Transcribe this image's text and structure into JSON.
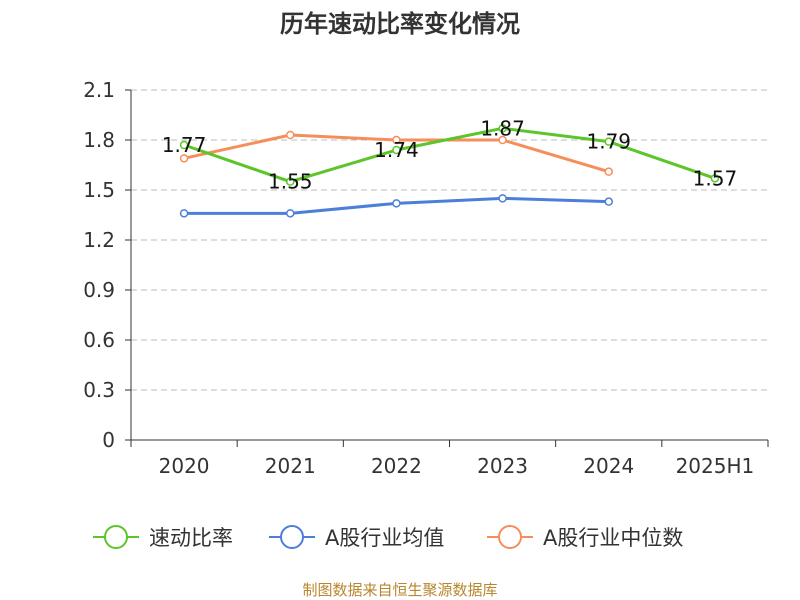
{
  "chart_data": {
    "type": "line",
    "title": "历年速动比率变化情况",
    "categories": [
      "2020",
      "2021",
      "2022",
      "2023",
      "2024",
      "2025H1"
    ],
    "ylim": [
      0,
      2.1
    ],
    "yticks": [
      "0",
      "0.3",
      "0.6",
      "0.9",
      "1.2",
      "1.5",
      "1.8",
      "2.1"
    ],
    "grid": true,
    "legend_position": "bottom",
    "series": [
      {
        "name": "速动比率",
        "color": "#5cc52a",
        "values": [
          1.77,
          1.55,
          1.74,
          1.87,
          1.79,
          1.57
        ],
        "labels": [
          "1.77",
          "1.55",
          "1.74",
          "1.87",
          "1.79",
          "1.57"
        ]
      },
      {
        "name": "A股行业均值",
        "color": "#4c7fd9",
        "values": [
          1.36,
          1.36,
          1.42,
          1.45,
          1.43,
          null
        ]
      },
      {
        "name": "A股行业中位数",
        "color": "#f58e5a",
        "values": [
          1.69,
          1.83,
          1.8,
          1.8,
          1.61,
          null
        ]
      }
    ]
  },
  "footer": {
    "source": "制图数据来自恒生聚源数据库"
  }
}
